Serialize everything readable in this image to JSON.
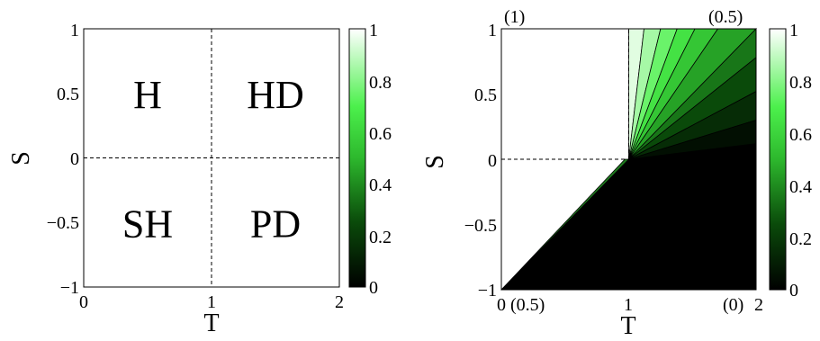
{
  "chart_data": [
    {
      "type": "heatmap",
      "panel": "left",
      "title": "",
      "xlabel": "T",
      "ylabel": "S",
      "xlim": [
        0,
        2
      ],
      "ylim": [
        -1,
        1
      ],
      "xticks": [
        "0",
        "1",
        "2"
      ],
      "yticks": [
        "1",
        "0.5",
        "0",
        "−0.5",
        "−1"
      ],
      "grid": false,
      "dividers": [
        {
          "axis": "x",
          "value": 1
        },
        {
          "axis": "y",
          "value": 0
        }
      ],
      "regions": [
        {
          "label": "H",
          "T": 0.5,
          "S": 0.5
        },
        {
          "label": "HD",
          "T": 1.5,
          "S": 0.5
        },
        {
          "label": "SH",
          "T": 0.5,
          "S": -0.5
        },
        {
          "label": "PD",
          "T": 1.5,
          "S": -0.5
        }
      ],
      "colorbar": {
        "min": 0,
        "max": 1,
        "ticks": [
          "1",
          "0.8",
          "0.6",
          "0.4",
          "0.2",
          "0"
        ]
      }
    },
    {
      "type": "heatmap",
      "panel": "right",
      "title": "",
      "xlabel": "T",
      "ylabel": "S",
      "xlim": [
        0,
        2
      ],
      "ylim": [
        -1,
        1
      ],
      "xticks": [
        "0",
        "1",
        "2"
      ],
      "yticks": [
        "1",
        "0.5",
        "0",
        "−0.5",
        "−1"
      ],
      "grid": false,
      "dividers": [
        {
          "axis": "x",
          "value": 1,
          "from": 0,
          "to": 1
        },
        {
          "axis": "y",
          "value": 0,
          "from": 0,
          "to": 1
        }
      ],
      "annotations": [
        "(1)",
        "(0.5)",
        "(0.5)",
        "(0)"
      ],
      "fan_levels": [
        0.95,
        0.85,
        0.75,
        0.65,
        0.55,
        0.45,
        0.35,
        0.25,
        0.15,
        0.05
      ],
      "colorbar": {
        "min": 0,
        "max": 1,
        "ticks": [
          "1",
          "0.8",
          "0.6",
          "0.4",
          "0.2",
          "0"
        ]
      }
    }
  ]
}
